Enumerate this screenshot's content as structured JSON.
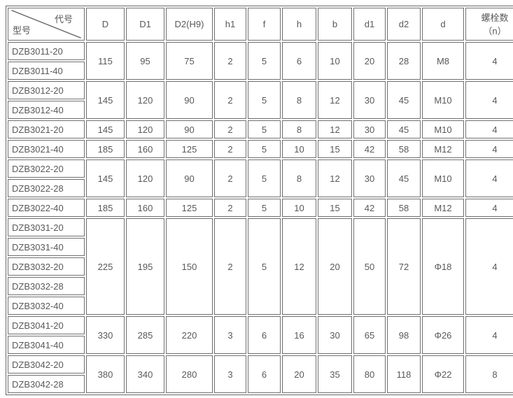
{
  "table": {
    "corner": {
      "top_right_label": "代号",
      "bottom_left_label": "型号"
    },
    "columns": [
      "D",
      "D1",
      "D2(H9)",
      "h1",
      "f",
      "h",
      "b",
      "d1",
      "d2",
      "d",
      "螺栓数\n（n）"
    ],
    "groups": [
      {
        "models": [
          "DZB3011-20",
          "DZB3011-40"
        ],
        "values": [
          "115",
          "95",
          "75",
          "2",
          "5",
          "6",
          "10",
          "20",
          "28",
          "M8",
          "4"
        ]
      },
      {
        "models": [
          "DZB3012-20",
          "DZB3012-40"
        ],
        "values": [
          "145",
          "120",
          "90",
          "2",
          "5",
          "8",
          "12",
          "30",
          "45",
          "M10",
          "4"
        ]
      },
      {
        "models": [
          "DZB3021-20"
        ],
        "values": [
          "145",
          "120",
          "90",
          "2",
          "5",
          "8",
          "12",
          "30",
          "45",
          "M10",
          "4"
        ]
      },
      {
        "models": [
          "DZB3021-40"
        ],
        "values": [
          "185",
          "160",
          "125",
          "2",
          "5",
          "10",
          "15",
          "42",
          "58",
          "M12",
          "4"
        ]
      },
      {
        "models": [
          "DZB3022-20",
          "DZB3022-28"
        ],
        "values": [
          "145",
          "120",
          "90",
          "2",
          "5",
          "8",
          "12",
          "30",
          "45",
          "M10",
          "4"
        ]
      },
      {
        "models": [
          "DZB3022-40"
        ],
        "values": [
          "185",
          "160",
          "125",
          "2",
          "5",
          "10",
          "15",
          "42",
          "58",
          "M12",
          "4"
        ]
      },
      {
        "models": [
          "DZB3031-20",
          "DZB3031-40",
          "DZB3032-20",
          "DZB3032-28",
          "DZB3032-40"
        ],
        "values": [
          "225",
          "195",
          "150",
          "2",
          "5",
          "12",
          "20",
          "50",
          "72",
          "Φ18",
          "4"
        ]
      },
      {
        "models": [
          "DZB3041-20",
          "DZB3041-40"
        ],
        "values": [
          "330",
          "285",
          "220",
          "3",
          "6",
          "16",
          "30",
          "65",
          "98",
          "Φ26",
          "4"
        ]
      },
      {
        "models": [
          "DZB3042-20",
          "DZB3042-28"
        ],
        "values": [
          "380",
          "340",
          "280",
          "3",
          "6",
          "20",
          "35",
          "80",
          "118",
          "Φ22",
          "8"
        ]
      }
    ],
    "border_color": "#6e6e6e",
    "text_color": "#595959"
  }
}
